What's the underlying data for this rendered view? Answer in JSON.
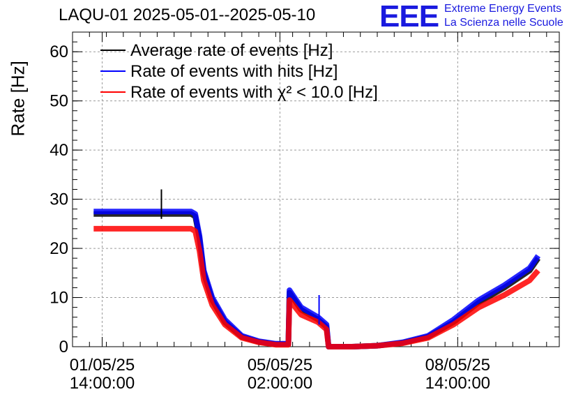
{
  "title": "LAQU-01 2025-05-01--2025-05-10",
  "logo": {
    "mark": "EEE",
    "line1": "Extreme Energy Events",
    "line2": "La Scienza nelle Scuole"
  },
  "colors": {
    "average": "#000000",
    "hits": "#0000ff",
    "chi2": "#ff0000",
    "logo": "#1a1adf",
    "grid": "#9a9a9a"
  },
  "chart_data": {
    "type": "line",
    "title": "LAQU-01 2025-05-01--2025-05-10",
    "xlabel": "",
    "ylabel": "Rate [Hz]",
    "ylim": [
      0,
      64
    ],
    "yticks": [
      0,
      10,
      20,
      30,
      40,
      50,
      60
    ],
    "x_ticks": [
      {
        "x": "2025-05-01 14:00:00",
        "date": "01/05/25",
        "time": "14:00:00"
      },
      {
        "x": "2025-05-05 02:00:00",
        "date": "05/05/25",
        "time": "02:00:00"
      },
      {
        "x": "2025-05-08 14:00:00",
        "date": "08/05/25",
        "time": "14:00:00"
      }
    ],
    "xlim": [
      "2025-05-01 00:00:00",
      "2025-05-10 14:00:00"
    ],
    "grid": true,
    "legend_position": "top-left",
    "series": [
      {
        "name": "Average rate of events [Hz]",
        "color": "#000000",
        "x": [
          "2025-05-01 10:00",
          "2025-05-02 00:00",
          "2025-05-02 16:00",
          "2025-05-03 08:00",
          "2025-05-03 10:00",
          "2025-05-03 12:00",
          "2025-05-03 14:00",
          "2025-05-03 18:00",
          "2025-05-04 00:00",
          "2025-05-04 08:00",
          "2025-05-04 16:00",
          "2025-05-05 00:00",
          "2025-05-05 04:00",
          "2025-05-05 06:00",
          "2025-05-05 06:30",
          "2025-05-05 12:00",
          "2025-05-05 20:00",
          "2025-05-06 00:00",
          "2025-05-06 01:00",
          "2025-05-06 04:00",
          "2025-05-06 12:00",
          "2025-05-07 00:00",
          "2025-05-07 12:00",
          "2025-05-08 00:00",
          "2025-05-08 12:00",
          "2025-05-09 00:00",
          "2025-05-09 12:00",
          "2025-05-10 00:00",
          "2025-05-10 04:00"
        ],
        "y": [
          27,
          27,
          27,
          27,
          26.5,
          22,
          15,
          9.5,
          5,
          2,
          1,
          0.5,
          0.5,
          0.5,
          11,
          7.5,
          5.5,
          4,
          0,
          0,
          0,
          0.2,
          0.8,
          2,
          5,
          9,
          12,
          15.5,
          18
        ]
      },
      {
        "name": "Rate of events with hits [Hz]",
        "color": "#0000ff",
        "x": [
          "2025-05-01 10:00",
          "2025-05-02 00:00",
          "2025-05-02 16:00",
          "2025-05-03 08:00",
          "2025-05-03 10:00",
          "2025-05-03 12:00",
          "2025-05-03 14:00",
          "2025-05-03 18:00",
          "2025-05-04 00:00",
          "2025-05-04 08:00",
          "2025-05-04 16:00",
          "2025-05-05 00:00",
          "2025-05-05 04:00",
          "2025-05-05 06:00",
          "2025-05-05 06:30",
          "2025-05-05 12:00",
          "2025-05-05 20:00",
          "2025-05-06 00:00",
          "2025-05-06 01:00",
          "2025-05-06 04:00",
          "2025-05-06 12:00",
          "2025-05-07 00:00",
          "2025-05-07 12:00",
          "2025-05-08 00:00",
          "2025-05-08 12:00",
          "2025-05-09 00:00",
          "2025-05-09 12:00",
          "2025-05-10 00:00",
          "2025-05-10 04:00"
        ],
        "y": [
          27.5,
          27.5,
          27.5,
          27.5,
          27,
          22.5,
          15.5,
          10,
          5.5,
          2.2,
          1.1,
          0.6,
          0.6,
          0.6,
          11.5,
          8,
          6,
          4.5,
          0,
          0,
          0,
          0.2,
          0.9,
          2.2,
          5.5,
          9.5,
          12.5,
          16,
          18.5
        ]
      },
      {
        "name": "Rate of events with χ² < 10.0 [Hz]",
        "color": "#ff0000",
        "x": [
          "2025-05-01 10:00",
          "2025-05-02 00:00",
          "2025-05-02 16:00",
          "2025-05-03 08:00",
          "2025-05-03 10:00",
          "2025-05-03 12:00",
          "2025-05-03 14:00",
          "2025-05-03 18:00",
          "2025-05-04 00:00",
          "2025-05-04 08:00",
          "2025-05-04 16:00",
          "2025-05-05 00:00",
          "2025-05-05 04:00",
          "2025-05-05 06:00",
          "2025-05-05 06:30",
          "2025-05-05 12:00",
          "2025-05-05 20:00",
          "2025-05-06 00:00",
          "2025-05-06 01:00",
          "2025-05-06 04:00",
          "2025-05-06 12:00",
          "2025-05-07 00:00",
          "2025-05-07 12:00",
          "2025-05-08 00:00",
          "2025-05-08 12:00",
          "2025-05-09 00:00",
          "2025-05-09 12:00",
          "2025-05-10 00:00",
          "2025-05-10 04:00"
        ],
        "y": [
          24,
          24,
          24,
          24,
          23.5,
          19.5,
          13.5,
          8.5,
          4.5,
          1.8,
          0.9,
          0.4,
          0.4,
          0.4,
          9.5,
          6.5,
          5,
          3.5,
          0,
          0,
          0,
          0.2,
          0.7,
          1.8,
          4.5,
          8,
          10.5,
          13.5,
          15.5
        ]
      }
    ],
    "spikes": [
      {
        "series": 0,
        "x": "2025-05-02 18:00",
        "y": 32
      },
      {
        "series": 1,
        "x": "2025-05-05 20:30",
        "y": 10.5
      }
    ]
  }
}
